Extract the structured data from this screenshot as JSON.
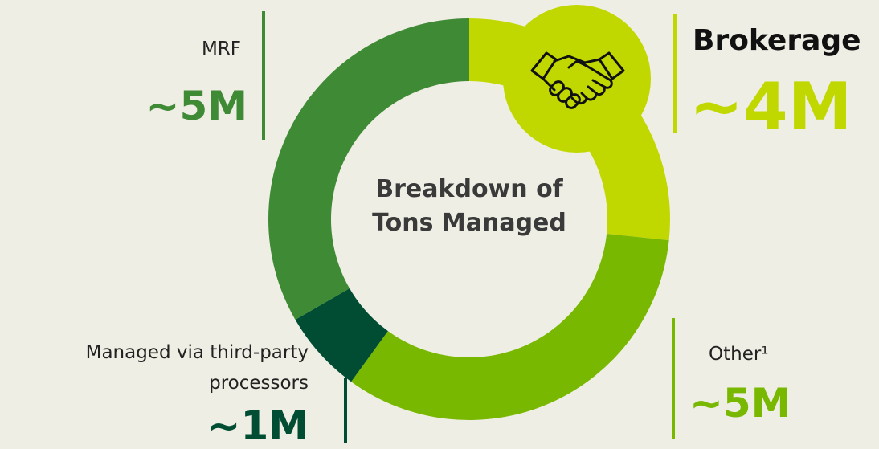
{
  "chart_data": {
    "type": "pie",
    "donut": true,
    "title": "Breakdown of Tons Managed",
    "categories": [
      "Brokerage",
      "Other¹",
      "Managed via third-party processors",
      "MRF"
    ],
    "values": [
      4,
      5,
      1,
      5
    ],
    "value_labels": [
      "~4M",
      "~5M",
      "~1M",
      "~5M"
    ],
    "colors": [
      "#c0d800",
      "#78b800",
      "#004d33",
      "#3f8a35"
    ]
  }
}
